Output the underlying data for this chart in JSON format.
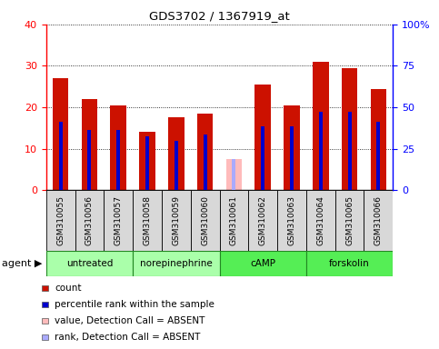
{
  "title": "GDS3702 / 1367919_at",
  "samples": [
    "GSM310055",
    "GSM310056",
    "GSM310057",
    "GSM310058",
    "GSM310059",
    "GSM310060",
    "GSM310061",
    "GSM310062",
    "GSM310063",
    "GSM310064",
    "GSM310065",
    "GSM310066"
  ],
  "count_values": [
    27,
    22,
    20.5,
    14,
    17.5,
    18.5,
    0,
    25.5,
    20.5,
    31,
    29.5,
    24.5
  ],
  "rank_values": [
    16.5,
    14.5,
    14.5,
    13,
    12,
    13.5,
    0,
    15.5,
    15.5,
    19,
    19,
    16.5
  ],
  "absent_count": [
    0,
    0,
    0,
    0,
    0,
    0,
    7.5,
    0,
    0,
    0,
    0,
    0
  ],
  "absent_rank": [
    0,
    0,
    0,
    0,
    0,
    0,
    7.5,
    0,
    0,
    0,
    0,
    0
  ],
  "agents": [
    {
      "label": "untreated",
      "start": 0,
      "end": 3,
      "color": "#aaffaa"
    },
    {
      "label": "norepinephrine",
      "start": 3,
      "end": 6,
      "color": "#aaffaa"
    },
    {
      "label": "cAMP",
      "start": 6,
      "end": 9,
      "color": "#55ee55"
    },
    {
      "label": "forskolin",
      "start": 9,
      "end": 12,
      "color": "#55ee55"
    }
  ],
  "ylim_left": [
    0,
    40
  ],
  "ylim_right": [
    0,
    100
  ],
  "yticks_left": [
    0,
    10,
    20,
    30,
    40
  ],
  "yticks_right": [
    0,
    25,
    50,
    75,
    100
  ],
  "yticklabels_right": [
    "0",
    "25",
    "50",
    "75",
    "100%"
  ],
  "bar_color_count": "#cc1100",
  "bar_color_rank": "#0000cc",
  "bar_color_absent_count": "#ffbbbb",
  "bar_color_absent_rank": "#aaaaff",
  "bar_width": 0.55,
  "rank_bar_width": 0.13,
  "legend_items": [
    {
      "color": "#cc1100",
      "label": "count"
    },
    {
      "color": "#0000cc",
      "label": "percentile rank within the sample"
    },
    {
      "color": "#ffbbbb",
      "label": "value, Detection Call = ABSENT"
    },
    {
      "color": "#aaaaff",
      "label": "rank, Detection Call = ABSENT"
    }
  ]
}
